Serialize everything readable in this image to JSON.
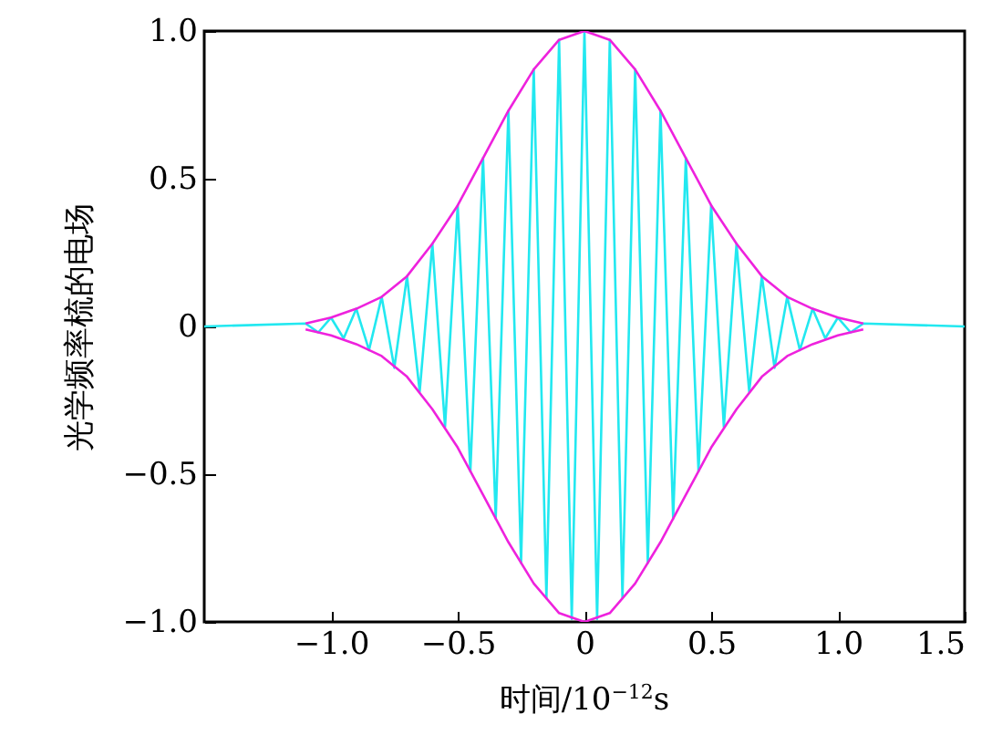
{
  "chart_data": {
    "type": "line",
    "xlabel": "时间/10$^{−12}$s",
    "ylabel": "光学频率梳的电场",
    "xlim": [
      -1.5,
      1.5
    ],
    "ylim": [
      -1,
      1
    ],
    "xticks": [
      {
        "value": -1,
        "label": "−1.0"
      },
      {
        "value": -0.5,
        "label": "−0.5"
      },
      0,
      0.5,
      {
        "value": 1,
        "label": "1.0"
      },
      1.5
    ],
    "yticks": [
      {
        "value": -1,
        "label": "−1.0"
      },
      {
        "value": -0.5,
        "label": "−0.5"
      },
      0,
      0.5,
      {
        "value": 1,
        "label": "1.0"
      }
    ],
    "grid": false,
    "marker": "none",
    "line_style": "solid",
    "series": [
      {
        "color": "#22e8f0",
        "x": [
          -1.5,
          -1.1,
          -1.05,
          -1,
          -0.95,
          -0.9,
          -0.85,
          -0.8,
          -0.75,
          -0.7,
          -0.65,
          -0.6,
          -0.55,
          -0.5,
          -0.45,
          -0.4,
          -0.35,
          -0.3,
          -0.25,
          -0.2,
          -0.15,
          -0.1,
          -0.05,
          0,
          0.05,
          0.1,
          0.15,
          0.2,
          0.25,
          0.3,
          0.35,
          0.4,
          0.45,
          0.5,
          0.55,
          0.6,
          0.65,
          0.7,
          0.75,
          0.8,
          0.85,
          0.9,
          0.95,
          1,
          1.05,
          1.1,
          1.5
        ],
        "values": [
          0,
          0.01,
          -0.02,
          0.03,
          -0.04,
          0.06,
          -0.08,
          0.1,
          -0.14,
          0.17,
          -0.22,
          0.28,
          -0.34,
          0.41,
          -0.49,
          0.57,
          -0.65,
          0.73,
          -0.8,
          0.87,
          -0.92,
          0.97,
          -0.99,
          1,
          -0.99,
          0.97,
          -0.92,
          0.87,
          -0.8,
          0.73,
          -0.65,
          0.57,
          -0.49,
          0.41,
          -0.34,
          0.28,
          -0.22,
          0.17,
          -0.14,
          0.1,
          -0.08,
          0.06,
          -0.04,
          0.03,
          -0.02,
          0.01,
          0
        ]
      },
      {
        "color": "#ee22dd",
        "x": [
          -1.1,
          -1,
          -0.9,
          -0.8,
          -0.7,
          -0.6,
          -0.5,
          -0.4,
          -0.3,
          -0.2,
          -0.1,
          0,
          0.1,
          0.2,
          0.3,
          0.4,
          0.5,
          0.6,
          0.7,
          0.8,
          0.9,
          1,
          1.1
        ],
        "values": [
          0.01,
          0.03,
          0.06,
          0.1,
          0.17,
          0.28,
          0.41,
          0.57,
          0.73,
          0.87,
          0.97,
          1,
          0.97,
          0.87,
          0.73,
          0.57,
          0.41,
          0.28,
          0.17,
          0.1,
          0.06,
          0.03,
          0.01
        ]
      },
      {
        "color": "#ee22dd",
        "x": [
          -1.1,
          -1,
          -0.9,
          -0.8,
          -0.7,
          -0.6,
          -0.5,
          -0.4,
          -0.3,
          -0.2,
          -0.1,
          0,
          0.1,
          0.2,
          0.3,
          0.4,
          0.5,
          0.6,
          0.7,
          0.8,
          0.9,
          1,
          1.1
        ],
        "values": [
          -0.01,
          -0.03,
          -0.06,
          -0.1,
          -0.17,
          -0.28,
          -0.41,
          -0.57,
          -0.73,
          -0.87,
          -0.97,
          -1,
          -0.97,
          -0.87,
          -0.73,
          -0.57,
          -0.41,
          -0.28,
          -0.17,
          -0.1,
          -0.06,
          -0.03,
          -0.01
        ]
      }
    ]
  }
}
